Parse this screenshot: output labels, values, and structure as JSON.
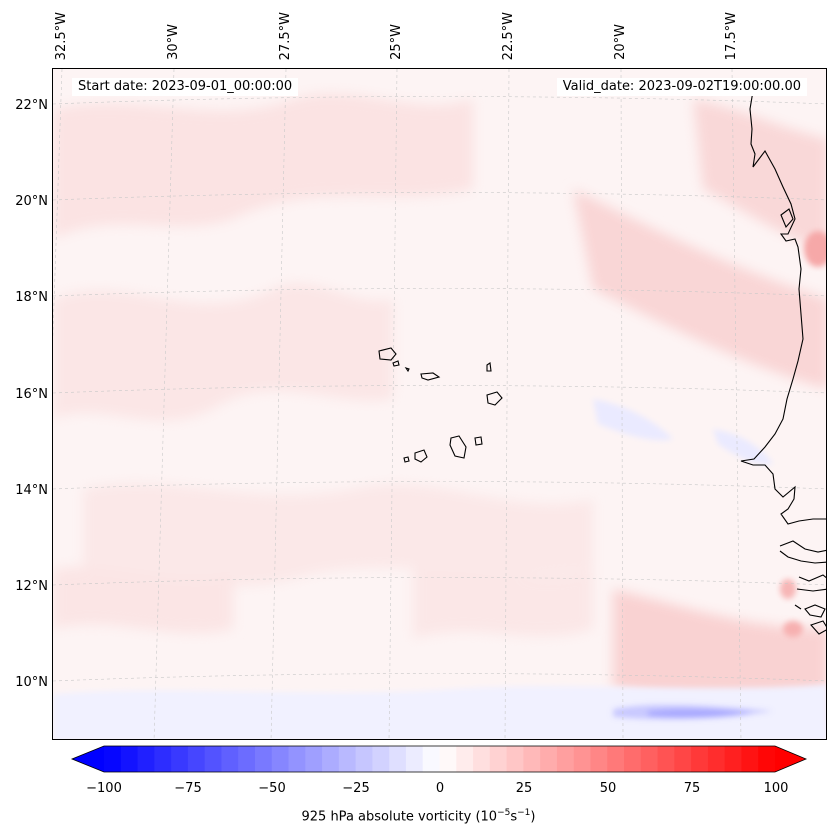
{
  "map": {
    "lon_labels": [
      "32.5°W",
      "30°W",
      "27.5°W",
      "25°W",
      "22.5°W",
      "20°W",
      "17.5°W"
    ],
    "lat_labels": [
      "22°N",
      "20°N",
      "18°N",
      "16°N",
      "14°N",
      "12°N",
      "10°N"
    ],
    "start_date": "Start date: 2023-09-01_00:00:00",
    "valid_date": "Valid_date: 2023-09-02T19:00:00.00"
  },
  "colorbar": {
    "ticks": [
      "−100",
      "−75",
      "−50",
      "−25",
      "0",
      "25",
      "50",
      "75",
      "100"
    ],
    "label_main": "925 hPa absolute vorticity (10",
    "label_exp1": "−5",
    "label_mid": "s",
    "label_exp2": "−1",
    "label_end": ")",
    "colors": {
      "neg": "#0000ff",
      "zero": "#ffffff",
      "pos": "#ff0000"
    }
  }
}
